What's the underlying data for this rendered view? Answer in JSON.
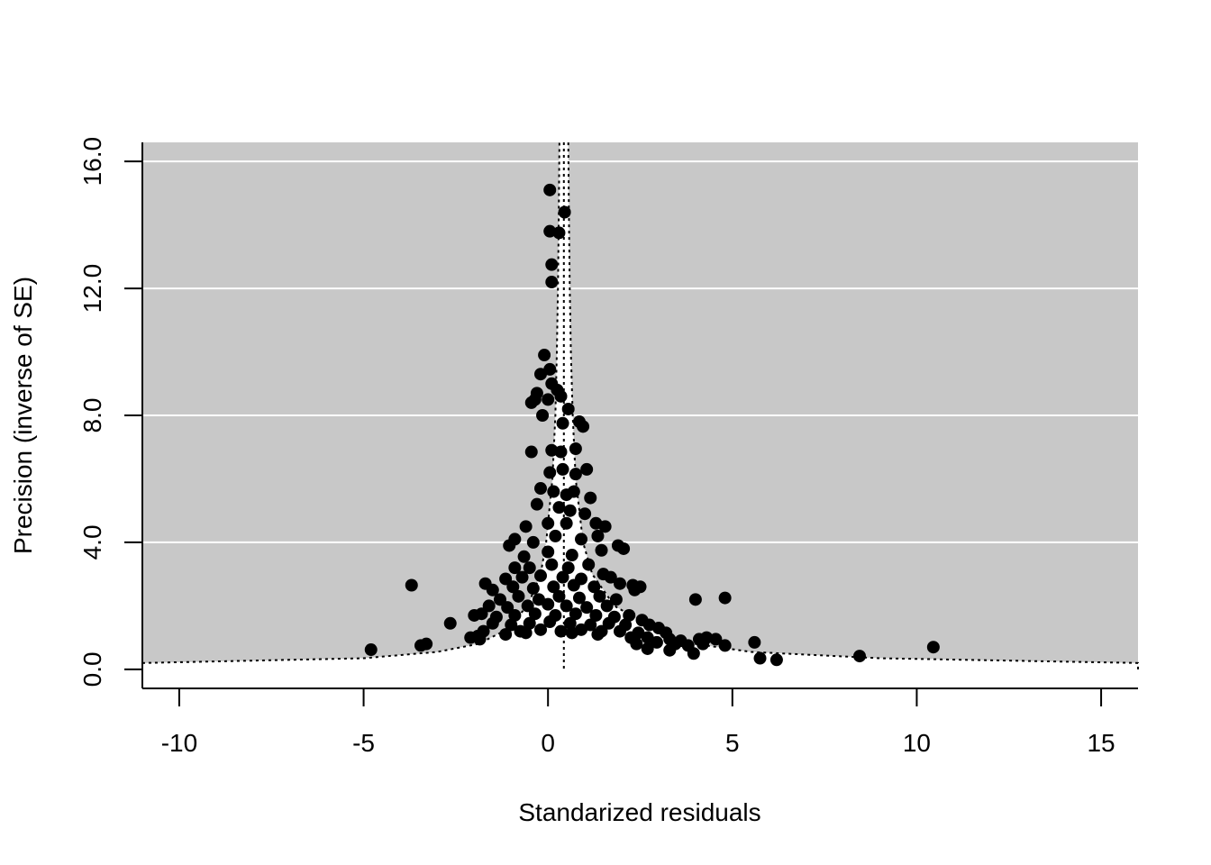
{
  "chart_data": {
    "type": "scatter",
    "title": "",
    "xlabel": "Standarized residuals",
    "ylabel": "Precision (inverse of SE)",
    "xlim": [
      -11,
      16
    ],
    "ylim": [
      -0.6,
      16.6
    ],
    "x_ticks": [
      -10,
      -5,
      0,
      5,
      10,
      15
    ],
    "x_tick_labels": [
      "-10",
      "-5",
      "0",
      "5",
      "10",
      "15"
    ],
    "y_ticks": [
      0,
      4,
      8,
      12,
      16
    ],
    "y_tick_labels": [
      "0.0",
      "4.0",
      "8.0",
      "12.0",
      "16.0"
    ],
    "grid": true,
    "colors": {
      "panel": "#c8c8c8",
      "region": "#ffffff",
      "grid": "#ffffff",
      "points": "#000000"
    },
    "reference_line": {
      "x": 0.43
    },
    "confidence_bounds": [
      {
        "y": 0.0,
        "lower": -11.0,
        "upper": 16.0
      },
      {
        "y": 0.2,
        "lower": -11.0,
        "upper": 16.0
      },
      {
        "y": 0.35,
        "lower": -5.0,
        "upper": 9.0
      },
      {
        "y": 0.55,
        "lower": -3.0,
        "upper": 5.5
      },
      {
        "y": 0.8,
        "lower": -1.9,
        "upper": 4.0
      },
      {
        "y": 1.2,
        "lower": -1.2,
        "upper": 3.0
      },
      {
        "y": 2.0,
        "lower": -0.55,
        "upper": 1.8
      },
      {
        "y": 3.0,
        "lower": -0.2,
        "upper": 1.2
      },
      {
        "y": 4.0,
        "lower": -0.05,
        "upper": 0.95
      },
      {
        "y": 6.0,
        "lower": 0.12,
        "upper": 0.75
      },
      {
        "y": 8.0,
        "lower": 0.2,
        "upper": 0.67
      },
      {
        "y": 10.0,
        "lower": 0.24,
        "upper": 0.62
      },
      {
        "y": 12.0,
        "lower": 0.27,
        "upper": 0.59
      },
      {
        "y": 14.0,
        "lower": 0.29,
        "upper": 0.57
      },
      {
        "y": 16.6,
        "lower": 0.31,
        "upper": 0.55
      }
    ],
    "points": [
      {
        "x": 0.05,
        "y": 15.1
      },
      {
        "x": 0.45,
        "y": 14.4
      },
      {
        "x": 0.05,
        "y": 13.8
      },
      {
        "x": 0.3,
        "y": 13.75
      },
      {
        "x": 0.1,
        "y": 12.75
      },
      {
        "x": 0.1,
        "y": 12.2
      },
      {
        "x": -0.1,
        "y": 9.9
      },
      {
        "x": 0.05,
        "y": 9.45
      },
      {
        "x": -0.2,
        "y": 9.3
      },
      {
        "x": 0.1,
        "y": 9.0
      },
      {
        "x": 0.25,
        "y": 8.8
      },
      {
        "x": -0.3,
        "y": 8.7
      },
      {
        "x": -0.35,
        "y": 8.5
      },
      {
        "x": -0.45,
        "y": 8.4
      },
      {
        "x": 0.0,
        "y": 8.5
      },
      {
        "x": 0.35,
        "y": 8.6
      },
      {
        "x": 0.55,
        "y": 8.2
      },
      {
        "x": -0.15,
        "y": 8.0
      },
      {
        "x": 0.4,
        "y": 7.75
      },
      {
        "x": 0.85,
        "y": 7.8
      },
      {
        "x": 0.95,
        "y": 7.65
      },
      {
        "x": -0.45,
        "y": 6.85
      },
      {
        "x": 0.1,
        "y": 6.9
      },
      {
        "x": 0.35,
        "y": 6.85
      },
      {
        "x": 0.75,
        "y": 6.95
      },
      {
        "x": 0.05,
        "y": 6.2
      },
      {
        "x": 0.4,
        "y": 6.3
      },
      {
        "x": 0.75,
        "y": 6.15
      },
      {
        "x": 1.05,
        "y": 6.3
      },
      {
        "x": -0.2,
        "y": 5.7
      },
      {
        "x": 0.15,
        "y": 5.6
      },
      {
        "x": 0.5,
        "y": 5.5
      },
      {
        "x": 0.7,
        "y": 5.6
      },
      {
        "x": 1.15,
        "y": 5.4
      },
      {
        "x": -0.3,
        "y": 5.2
      },
      {
        "x": 0.3,
        "y": 5.1
      },
      {
        "x": 0.6,
        "y": 5.0
      },
      {
        "x": 1.0,
        "y": 4.9
      },
      {
        "x": -0.6,
        "y": 4.5
      },
      {
        "x": 0.0,
        "y": 4.6
      },
      {
        "x": 0.5,
        "y": 4.6
      },
      {
        "x": 1.3,
        "y": 4.6
      },
      {
        "x": 1.55,
        "y": 4.5
      },
      {
        "x": -0.9,
        "y": 4.1
      },
      {
        "x": -1.05,
        "y": 3.9
      },
      {
        "x": -0.4,
        "y": 4.0
      },
      {
        "x": 0.2,
        "y": 4.2
      },
      {
        "x": 0.9,
        "y": 4.1
      },
      {
        "x": 1.35,
        "y": 4.2
      },
      {
        "x": 1.9,
        "y": 3.9
      },
      {
        "x": 2.05,
        "y": 3.8
      },
      {
        "x": -0.65,
        "y": 3.55
      },
      {
        "x": 0.0,
        "y": 3.7
      },
      {
        "x": 0.65,
        "y": 3.6
      },
      {
        "x": 1.45,
        "y": 3.75
      },
      {
        "x": -0.9,
        "y": 3.2
      },
      {
        "x": -0.5,
        "y": 3.2
      },
      {
        "x": 0.1,
        "y": 3.3
      },
      {
        "x": 0.55,
        "y": 3.2
      },
      {
        "x": 1.1,
        "y": 3.3
      },
      {
        "x": 1.5,
        "y": 3.0
      },
      {
        "x": -1.15,
        "y": 2.85
      },
      {
        "x": -0.7,
        "y": 2.9
      },
      {
        "x": -0.2,
        "y": 2.95
      },
      {
        "x": 0.4,
        "y": 2.9
      },
      {
        "x": 0.9,
        "y": 2.85
      },
      {
        "x": 1.7,
        "y": 2.9
      },
      {
        "x": -1.7,
        "y": 2.7
      },
      {
        "x": -3.7,
        "y": 2.65
      },
      {
        "x": -1.5,
        "y": 2.5
      },
      {
        "x": -0.95,
        "y": 2.6
      },
      {
        "x": -0.4,
        "y": 2.55
      },
      {
        "x": 0.15,
        "y": 2.6
      },
      {
        "x": 0.7,
        "y": 2.65
      },
      {
        "x": 1.25,
        "y": 2.6
      },
      {
        "x": 1.95,
        "y": 2.7
      },
      {
        "x": 2.3,
        "y": 2.65
      },
      {
        "x": 2.5,
        "y": 2.6
      },
      {
        "x": -1.3,
        "y": 2.2
      },
      {
        "x": -0.8,
        "y": 2.3
      },
      {
        "x": -0.25,
        "y": 2.2
      },
      {
        "x": 0.3,
        "y": 2.3
      },
      {
        "x": 0.85,
        "y": 2.25
      },
      {
        "x": 1.4,
        "y": 2.3
      },
      {
        "x": 1.85,
        "y": 2.2
      },
      {
        "x": 2.35,
        "y": 2.5
      },
      {
        "x": -1.6,
        "y": 2.0
      },
      {
        "x": -1.1,
        "y": 1.95
      },
      {
        "x": -0.55,
        "y": 2.0
      },
      {
        "x": 0.0,
        "y": 2.05
      },
      {
        "x": 0.5,
        "y": 2.0
      },
      {
        "x": 1.05,
        "y": 1.95
      },
      {
        "x": 1.6,
        "y": 2.0
      },
      {
        "x": 4.0,
        "y": 2.2
      },
      {
        "x": 4.8,
        "y": 2.25
      },
      {
        "x": -1.8,
        "y": 1.75
      },
      {
        "x": -2.0,
        "y": 1.7
      },
      {
        "x": -1.4,
        "y": 1.65
      },
      {
        "x": -0.9,
        "y": 1.7
      },
      {
        "x": -0.35,
        "y": 1.75
      },
      {
        "x": 0.2,
        "y": 1.7
      },
      {
        "x": 0.75,
        "y": 1.75
      },
      {
        "x": 1.3,
        "y": 1.7
      },
      {
        "x": 1.8,
        "y": 1.65
      },
      {
        "x": 2.2,
        "y": 1.7
      },
      {
        "x": 2.55,
        "y": 1.55
      },
      {
        "x": -2.65,
        "y": 1.45
      },
      {
        "x": -1.5,
        "y": 1.45
      },
      {
        "x": -1.0,
        "y": 1.4
      },
      {
        "x": -0.5,
        "y": 1.45
      },
      {
        "x": 0.05,
        "y": 1.5
      },
      {
        "x": 0.6,
        "y": 1.45
      },
      {
        "x": 1.15,
        "y": 1.4
      },
      {
        "x": 1.65,
        "y": 1.45
      },
      {
        "x": 2.1,
        "y": 1.4
      },
      {
        "x": 2.75,
        "y": 1.4
      },
      {
        "x": 3.0,
        "y": 1.3
      },
      {
        "x": -1.75,
        "y": 1.2
      },
      {
        "x": -0.75,
        "y": 1.2
      },
      {
        "x": -0.2,
        "y": 1.25
      },
      {
        "x": 0.35,
        "y": 1.2
      },
      {
        "x": 0.9,
        "y": 1.25
      },
      {
        "x": 1.45,
        "y": 1.2
      },
      {
        "x": 1.95,
        "y": 1.2
      },
      {
        "x": 2.45,
        "y": 1.15
      },
      {
        "x": 3.2,
        "y": 1.15
      },
      {
        "x": -2.1,
        "y": 1.0
      },
      {
        "x": -1.9,
        "y": 1.05
      },
      {
        "x": -1.15,
        "y": 1.1
      },
      {
        "x": -0.6,
        "y": 1.15
      },
      {
        "x": 0.65,
        "y": 1.15
      },
      {
        "x": 1.35,
        "y": 1.1
      },
      {
        "x": 2.25,
        "y": 1.0
      },
      {
        "x": 2.7,
        "y": 1.0
      },
      {
        "x": 3.3,
        "y": 0.95
      },
      {
        "x": 3.6,
        "y": 0.9
      },
      {
        "x": 4.1,
        "y": 0.95
      },
      {
        "x": 4.3,
        "y": 1.0
      },
      {
        "x": 4.55,
        "y": 0.95
      },
      {
        "x": -1.85,
        "y": 0.95
      },
      {
        "x": 2.4,
        "y": 0.8
      },
      {
        "x": 2.95,
        "y": 0.85
      },
      {
        "x": 3.45,
        "y": 0.8
      },
      {
        "x": 3.8,
        "y": 0.75
      },
      {
        "x": 4.2,
        "y": 0.8
      },
      {
        "x": 4.8,
        "y": 0.75
      },
      {
        "x": 5.6,
        "y": 0.85
      },
      {
        "x": -3.3,
        "y": 0.8
      },
      {
        "x": -3.45,
        "y": 0.75
      },
      {
        "x": 10.45,
        "y": 0.7
      },
      {
        "x": 2.7,
        "y": 0.65
      },
      {
        "x": 3.3,
        "y": 0.6
      },
      {
        "x": 3.95,
        "y": 0.5
      },
      {
        "x": -4.8,
        "y": 0.62
      },
      {
        "x": 8.45,
        "y": 0.42
      },
      {
        "x": 5.75,
        "y": 0.35
      },
      {
        "x": 6.2,
        "y": 0.3
      }
    ]
  }
}
